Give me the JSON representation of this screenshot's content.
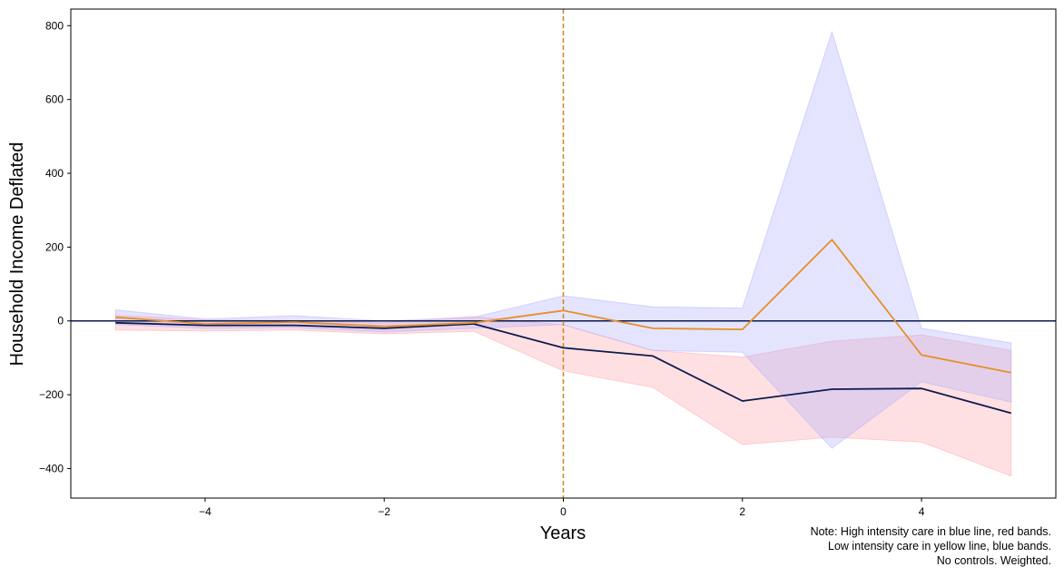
{
  "chart_data": {
    "type": "line",
    "xlabel": "Years",
    "ylabel": "Household Income Deflated",
    "xlim": [
      -5.5,
      5.5
    ],
    "ylim": [
      -480,
      845
    ],
    "xticks": [
      -4,
      -2,
      0,
      2,
      4
    ],
    "yticks": [
      -400,
      -200,
      0,
      200,
      400,
      600,
      800
    ],
    "xtick_labels": [
      "−4",
      "−2",
      "0",
      "2",
      "4"
    ],
    "ytick_labels": [
      "−400",
      "−200",
      "0",
      "200",
      "400",
      "600",
      "800"
    ],
    "reference_lines": {
      "horizontal_y": 0,
      "horizontal_color": "#0b1a4f",
      "vertical_x": 0,
      "vertical_color": "#d4821a",
      "vertical_style": "dashed"
    },
    "x": [
      -5,
      -4,
      -3,
      -2,
      -1,
      0,
      1,
      2,
      3,
      4,
      5
    ],
    "series": [
      {
        "color": "#0d1b4f",
        "values": [
          -5,
          -12,
          -12,
          -20,
          -8,
          -73,
          -95,
          -217,
          -185,
          -183,
          -250
        ],
        "band_color": "#ff9fa5",
        "band_lower": [
          -25,
          -27,
          -25,
          -35,
          -28,
          -135,
          -180,
          -335,
          -315,
          -328,
          -420
        ],
        "band_upper": [
          15,
          3,
          1,
          -5,
          12,
          -11,
          -80,
          -98,
          -55,
          -38,
          -80
        ]
      },
      {
        "color": "#e6902a",
        "values": [
          10,
          -8,
          -3,
          -15,
          -5,
          28,
          -20,
          -23,
          220,
          -92,
          -140
        ],
        "band_color": "#aaaaff",
        "band_lower": [
          -10,
          -20,
          -18,
          -30,
          -20,
          -10,
          -80,
          -85,
          -345,
          -165,
          -220
        ],
        "band_upper": [
          30,
          5,
          14,
          0,
          10,
          68,
          38,
          35,
          783,
          -20,
          -60
        ]
      }
    ]
  },
  "note": [
    "Note: High intensity care in blue line, red bands.",
    "Low intensity care in yellow line, blue bands.",
    "No controls. Weighted."
  ]
}
